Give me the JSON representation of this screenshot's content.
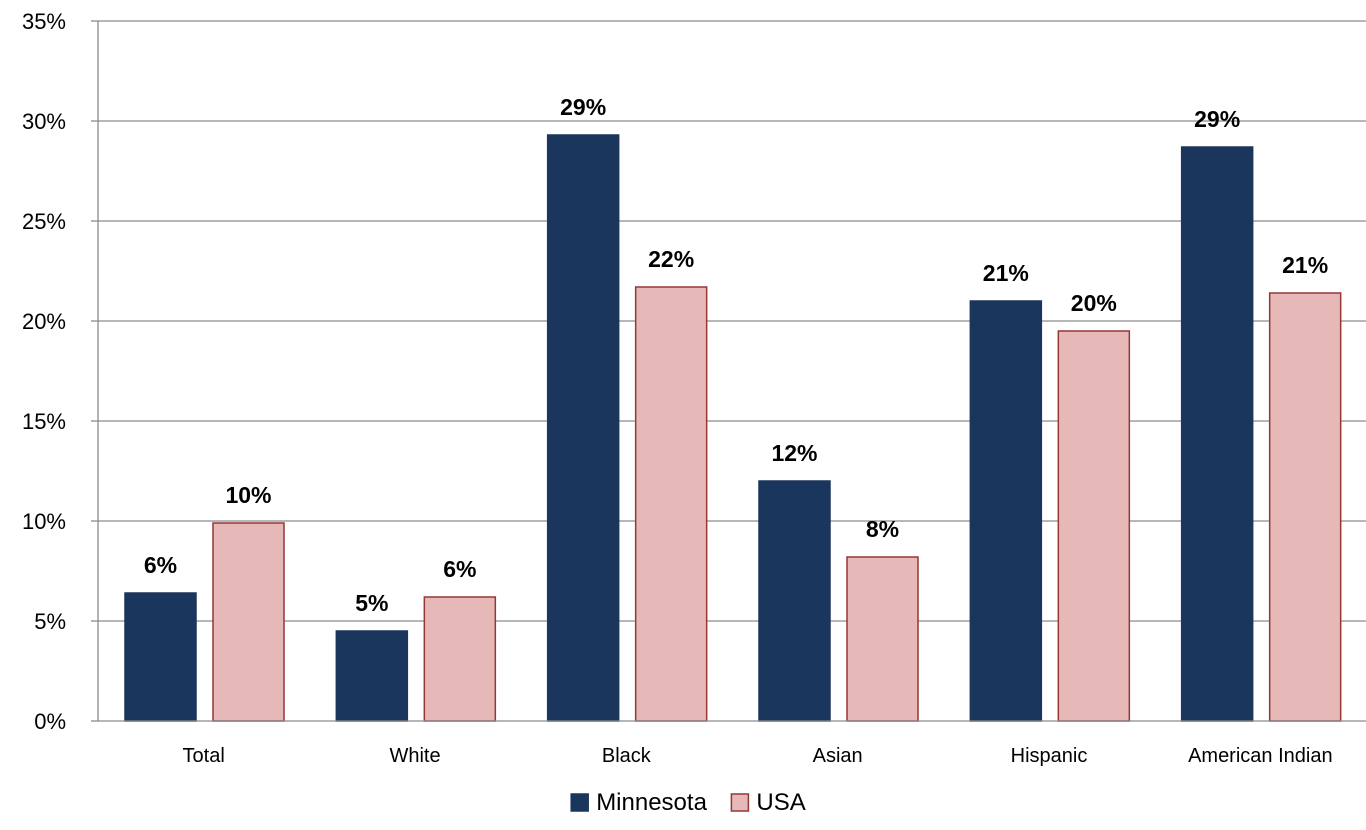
{
  "chart_data": {
    "type": "bar",
    "categories": [
      "Total",
      "White",
      "Black",
      "Asian",
      "Hispanic",
      "American Indian"
    ],
    "series": [
      {
        "name": "Minnesota",
        "values": [
          6.4,
          4.5,
          29.3,
          12.0,
          21.0,
          28.7
        ],
        "labels": [
          "6%",
          "5%",
          "29%",
          "12%",
          "21%",
          "29%"
        ],
        "color": "#1b365d",
        "stroke": "#1b365d"
      },
      {
        "name": "USA",
        "values": [
          9.9,
          6.2,
          21.7,
          8.2,
          19.5,
          21.4
        ],
        "labels": [
          "10%",
          "6%",
          "22%",
          "8%",
          "20%",
          "21%"
        ],
        "color": "#e6b8b7",
        "stroke": "#953735"
      }
    ],
    "yticks": [
      "0%",
      "5%",
      "10%",
      "15%",
      "20%",
      "25%",
      "30%",
      "35%"
    ],
    "ylim": [
      0,
      35
    ],
    "ytick_step": 5,
    "grid": true,
    "legend": "bottom",
    "title": "",
    "xlabel": "",
    "ylabel": ""
  }
}
